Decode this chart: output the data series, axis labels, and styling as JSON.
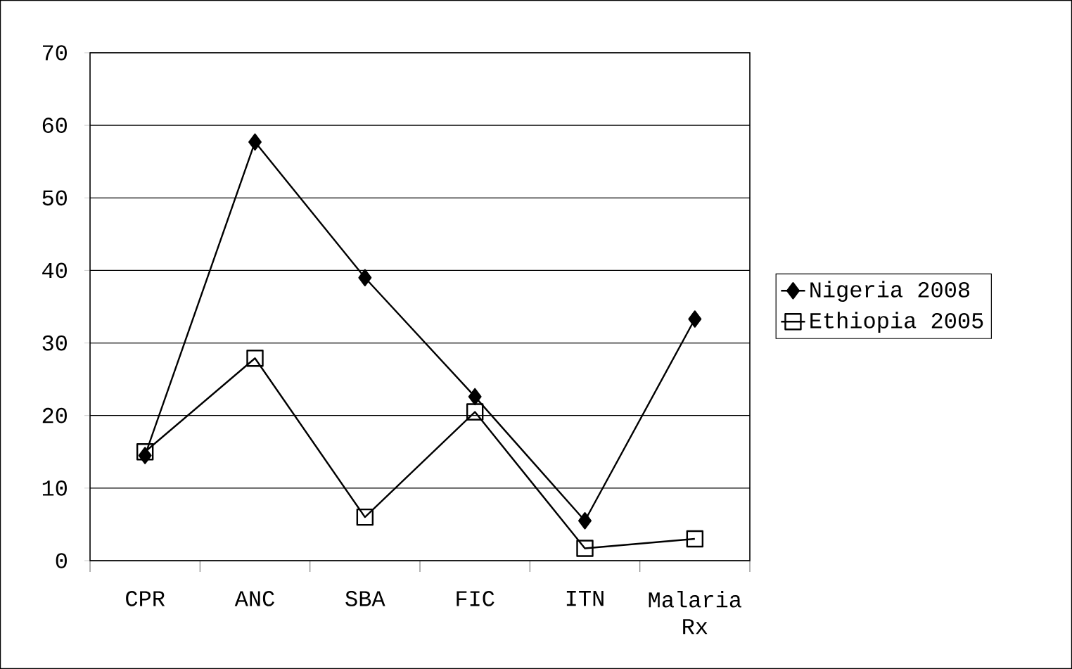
{
  "chart_data": {
    "type": "line",
    "categories": [
      "CPR",
      "ANC",
      "SBA",
      "FIC",
      "ITN",
      "Malaria Rx"
    ],
    "series": [
      {
        "name": "Nigeria 2008",
        "color": "#000000",
        "marker": "diamond",
        "values": [
          14.5,
          57.7,
          39.0,
          22.6,
          5.5,
          33.3
        ]
      },
      {
        "name": "Ethiopia 2005",
        "color": "#000000",
        "marker": "square",
        "values": [
          15.0,
          27.9,
          6.0,
          20.5,
          1.7,
          3.0
        ]
      }
    ],
    "ylim": [
      0,
      70
    ],
    "yticks": [
      0,
      10,
      20,
      30,
      40,
      50,
      60,
      70
    ],
    "grid": "y",
    "legend": "right",
    "line_style": "solid"
  }
}
